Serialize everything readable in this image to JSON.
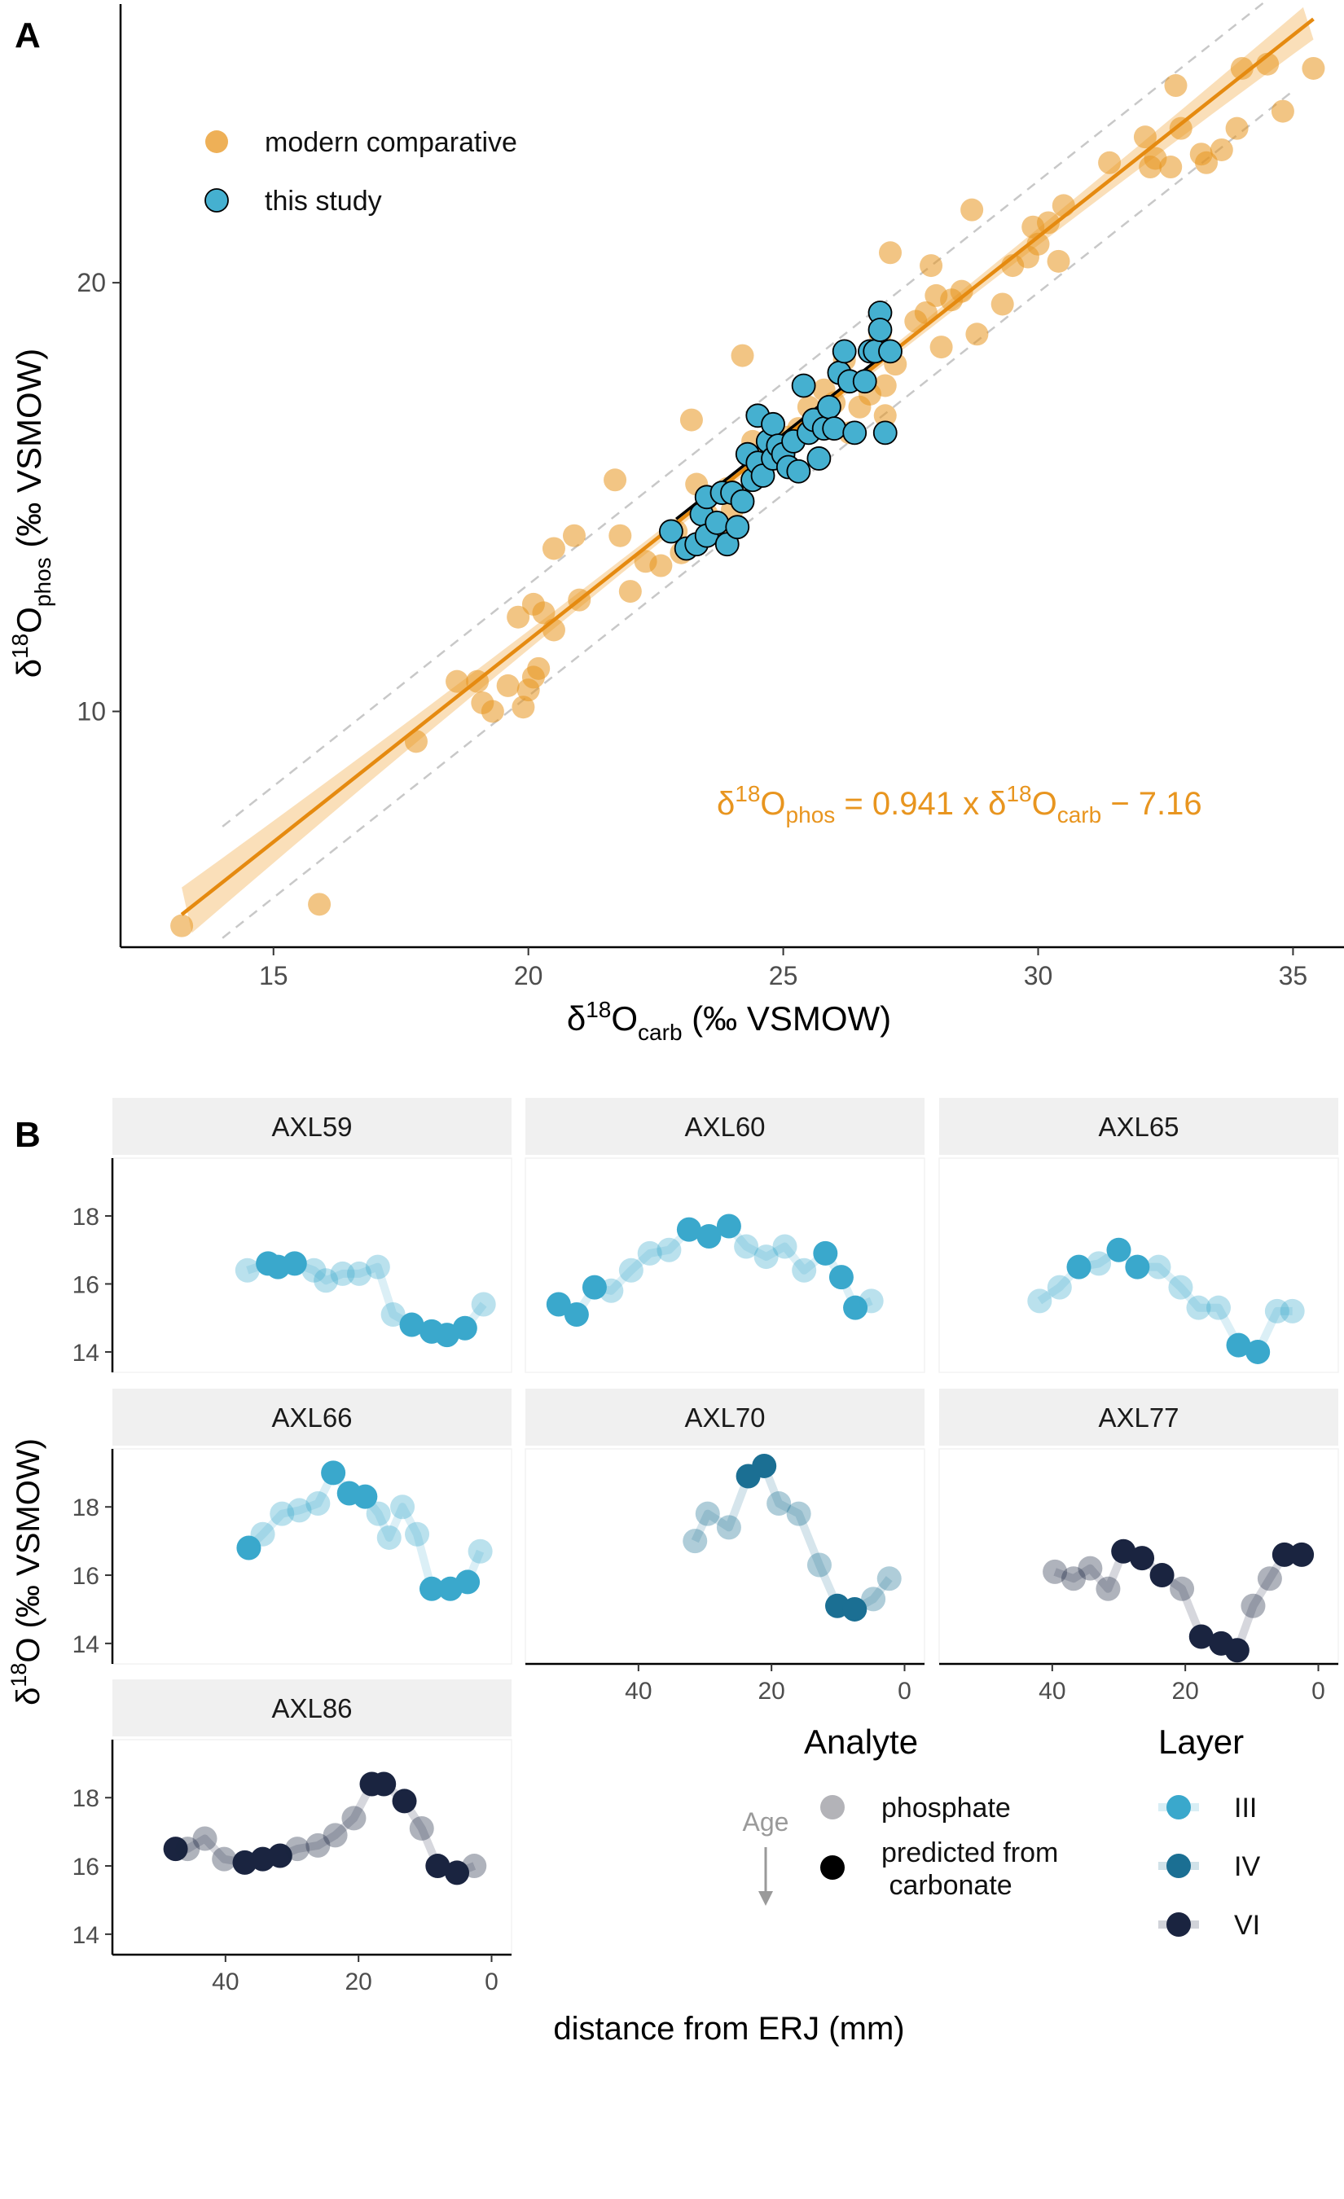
{
  "panel_a": {
    "label": "A",
    "xlabel": "δ18Ocarb (‰ VSMOW)",
    "ylabel": "δ18Ophos (‰ VSMOW)",
    "legend": [
      "modern comparative",
      "this study"
    ],
    "equation": "δ18Ophos = 0.941 x δ18Ocarb − 7.16"
  },
  "panel_b": {
    "label": "B",
    "ylabel": "δ18O (‰ VSMOW)",
    "xlabel": "distance from ERJ (mm)",
    "age_label": "Age",
    "analyte_title": "Analyte",
    "analyte_items": [
      "phosphate",
      "predicted from carbonate"
    ],
    "layer_title": "Layer",
    "layer_items": [
      "III",
      "IV",
      "VI"
    ]
  },
  "colors": {
    "modern": "#E8951F",
    "this_study": "#45B0D0",
    "layer_III": "#3AA8CC",
    "layer_IV": "#1B6F93",
    "layer_VI": "#1A2440",
    "phosphate_grey": "#9A9AA0",
    "fit_line": "#E58A10",
    "band": "#F7C98A"
  },
  "chart_data": [
    {
      "type": "scatter",
      "panel": "A",
      "xlim": [
        12,
        36
      ],
      "ylim": [
        4.5,
        26.5
      ],
      "xticks": [
        15,
        20,
        25,
        30,
        35
      ],
      "yticks": [
        10,
        20
      ],
      "grid": false,
      "legend_position": "top-left",
      "fit": {
        "slope": 0.941,
        "intercept": -7.16,
        "x_range": [
          13.2,
          35.4
        ]
      },
      "prediction_interval_halfwidth": 1.3,
      "series": [
        {
          "name": "modern comparative",
          "points": [
            [
              13.2,
              5.0
            ],
            [
              15.9,
              5.5
            ],
            [
              17.8,
              9.3
            ],
            [
              18.6,
              10.7
            ],
            [
              19.0,
              10.7
            ],
            [
              19.1,
              10.2
            ],
            [
              19.3,
              10.0
            ],
            [
              19.6,
              10.6
            ],
            [
              19.8,
              12.2
            ],
            [
              19.9,
              10.1
            ],
            [
              20.0,
              10.5
            ],
            [
              20.1,
              12.5
            ],
            [
              20.1,
              10.8
            ],
            [
              20.2,
              11.0
            ],
            [
              20.3,
              12.3
            ],
            [
              20.5,
              11.9
            ],
            [
              20.5,
              13.8
            ],
            [
              20.9,
              14.1
            ],
            [
              21.0,
              12.6
            ],
            [
              21.7,
              15.4
            ],
            [
              21.8,
              14.1
            ],
            [
              22.0,
              12.8
            ],
            [
              22.3,
              13.5
            ],
            [
              22.6,
              13.4
            ],
            [
              22.9,
              14.2
            ],
            [
              23.0,
              13.7
            ],
            [
              23.3,
              15.3
            ],
            [
              23.5,
              14.6
            ],
            [
              23.9,
              15.2
            ],
            [
              23.9,
              14.0
            ],
            [
              24.0,
              14.7
            ],
            [
              24.4,
              16.3
            ],
            [
              24.5,
              15.5
            ],
            [
              23.2,
              16.8
            ],
            [
              24.2,
              18.3
            ],
            [
              24.8,
              16.5
            ],
            [
              25.0,
              15.9
            ],
            [
              25.1,
              16.4
            ],
            [
              25.3,
              16.6
            ],
            [
              25.5,
              17.1
            ],
            [
              25.6,
              16.8
            ],
            [
              25.8,
              17.5
            ],
            [
              26.0,
              17.2
            ],
            [
              26.2,
              18.2
            ],
            [
              26.3,
              16.5
            ],
            [
              26.5,
              17.1
            ],
            [
              26.7,
              17.4
            ],
            [
              26.8,
              18.4
            ],
            [
              26.9,
              18.8
            ],
            [
              27.0,
              17.6
            ],
            [
              27.0,
              16.9
            ],
            [
              27.1,
              20.7
            ],
            [
              27.2,
              18.1
            ],
            [
              27.6,
              19.1
            ],
            [
              27.8,
              19.3
            ],
            [
              27.9,
              20.4
            ],
            [
              28.0,
              19.7
            ],
            [
              28.1,
              18.5
            ],
            [
              28.3,
              19.6
            ],
            [
              28.5,
              19.8
            ],
            [
              28.7,
              21.7
            ],
            [
              28.8,
              18.8
            ],
            [
              29.3,
              19.5
            ],
            [
              29.5,
              20.4
            ],
            [
              29.8,
              20.6
            ],
            [
              29.9,
              21.3
            ],
            [
              30.0,
              20.9
            ],
            [
              30.2,
              21.4
            ],
            [
              30.4,
              20.5
            ],
            [
              30.5,
              21.8
            ],
            [
              31.4,
              22.8
            ],
            [
              32.1,
              23.4
            ],
            [
              32.2,
              22.7
            ],
            [
              32.3,
              22.9
            ],
            [
              32.6,
              22.7
            ],
            [
              32.8,
              23.6
            ],
            [
              33.2,
              23.0
            ],
            [
              33.3,
              22.8
            ],
            [
              33.6,
              23.1
            ],
            [
              33.9,
              23.6
            ],
            [
              34.5,
              25.1
            ],
            [
              34.8,
              24.0
            ],
            [
              35.4,
              25.0
            ],
            [
              32.7,
              24.6
            ],
            [
              34.0,
              25.0
            ]
          ]
        },
        {
          "name": "this study",
          "points": [
            [
              22.8,
              14.2
            ],
            [
              23.1,
              13.8
            ],
            [
              23.3,
              13.9
            ],
            [
              23.4,
              14.6
            ],
            [
              23.5,
              14.1
            ],
            [
              23.5,
              15.0
            ],
            [
              23.7,
              14.4
            ],
            [
              23.8,
              15.1
            ],
            [
              23.9,
              13.9
            ],
            [
              24.0,
              15.1
            ],
            [
              24.1,
              14.3
            ],
            [
              24.2,
              14.9
            ],
            [
              24.3,
              16.0
            ],
            [
              24.4,
              15.4
            ],
            [
              24.5,
              15.8
            ],
            [
              24.5,
              16.9
            ],
            [
              24.6,
              15.5
            ],
            [
              24.7,
              16.3
            ],
            [
              24.8,
              15.9
            ],
            [
              24.8,
              16.7
            ],
            [
              24.9,
              16.2
            ],
            [
              25.0,
              16.0
            ],
            [
              25.1,
              15.7
            ],
            [
              25.2,
              16.3
            ],
            [
              25.3,
              15.6
            ],
            [
              25.4,
              17.6
            ],
            [
              25.5,
              16.5
            ],
            [
              25.6,
              16.8
            ],
            [
              25.7,
              15.9
            ],
            [
              25.8,
              16.6
            ],
            [
              25.9,
              17.1
            ],
            [
              26.0,
              16.6
            ],
            [
              26.1,
              17.9
            ],
            [
              26.2,
              18.4
            ],
            [
              26.3,
              17.7
            ],
            [
              26.4,
              16.5
            ],
            [
              26.6,
              17.7
            ],
            [
              26.7,
              18.4
            ],
            [
              26.8,
              18.4
            ],
            [
              26.9,
              19.3
            ],
            [
              26.9,
              18.9
            ],
            [
              27.0,
              16.5
            ],
            [
              27.1,
              18.4
            ]
          ]
        }
      ]
    },
    {
      "type": "line",
      "panel": "AXL59",
      "x": [
        36.7,
        33.6,
        32.1,
        29.6,
        26.7,
        24.9,
        22.4,
        19.9,
        17.1,
        14.8,
        12.0,
        9.0,
        6.7,
        4.0,
        1.2
      ],
      "y": [
        16.4,
        16.6,
        16.5,
        16.6,
        16.4,
        16.1,
        16.3,
        16.3,
        16.5,
        15.1,
        14.8,
        14.6,
        14.5,
        14.7,
        15.4
      ],
      "analyte": [
        "phosphate",
        "predicted",
        "predicted",
        "predicted",
        "phosphate",
        "phosphate",
        "phosphate",
        "phosphate",
        "phosphate",
        "phosphate",
        "predicted",
        "predicted",
        "predicted",
        "predicted",
        "phosphate"
      ],
      "layer": "III"
    },
    {
      "type": "line",
      "panel": "AXL60",
      "x": [
        52.0,
        49.3,
        46.6,
        44.1,
        41.1,
        38.3,
        35.4,
        32.4,
        29.4,
        26.4,
        23.8,
        20.8,
        18.0,
        15.1,
        11.9,
        9.5,
        7.4,
        5.0
      ],
      "y": [
        15.4,
        15.1,
        15.9,
        15.8,
        16.4,
        16.9,
        17.0,
        17.6,
        17.4,
        17.7,
        17.1,
        16.8,
        17.1,
        16.4,
        16.9,
        16.2,
        15.3,
        15.5
      ],
      "analyte": [
        "predicted",
        "predicted",
        "predicted",
        "phosphate",
        "phosphate",
        "phosphate",
        "phosphate",
        "predicted",
        "predicted",
        "predicted",
        "phosphate",
        "phosphate",
        "phosphate",
        "phosphate",
        "predicted",
        "predicted",
        "predicted",
        "phosphate"
      ],
      "layer": "III"
    },
    {
      "type": "line",
      "panel": "AXL65",
      "x": [
        41.9,
        38.9,
        36.0,
        33.0,
        30.0,
        27.2,
        24.0,
        20.7,
        18.0,
        15.0,
        12.0,
        9.1,
        6.2,
        3.9
      ],
      "y": [
        15.5,
        15.9,
        16.5,
        16.6,
        17.0,
        16.5,
        16.5,
        15.9,
        15.3,
        15.3,
        14.2,
        14.0,
        15.2,
        15.2
      ],
      "analyte": [
        "phosphate",
        "phosphate",
        "predicted",
        "phosphate",
        "predicted",
        "predicted",
        "phosphate",
        "phosphate",
        "phosphate",
        "phosphate",
        "predicted",
        "predicted",
        "phosphate",
        "phosphate"
      ],
      "layer": "III"
    },
    {
      "type": "line",
      "panel": "AXL66",
      "x": [
        36.5,
        34.4,
        31.5,
        28.9,
        26.1,
        23.8,
        21.4,
        19.0,
        17.0,
        15.4,
        13.4,
        11.2,
        9.0,
        6.2,
        3.6,
        1.7
      ],
      "y": [
        16.8,
        17.2,
        17.8,
        17.9,
        18.1,
        19.0,
        18.4,
        18.3,
        17.8,
        17.1,
        18.0,
        17.2,
        15.6,
        15.6,
        15.8,
        16.7
      ],
      "analyte": [
        "predicted",
        "phosphate",
        "phosphate",
        "phosphate",
        "phosphate",
        "predicted",
        "predicted",
        "predicted",
        "phosphate",
        "phosphate",
        "phosphate",
        "phosphate",
        "predicted",
        "predicted",
        "predicted",
        "phosphate"
      ],
      "layer": "III"
    },
    {
      "type": "line",
      "panel": "AXL70",
      "x": [
        31.5,
        29.6,
        26.4,
        23.5,
        21.1,
        18.9,
        15.9,
        12.8,
        10.1,
        7.5,
        4.7,
        2.3
      ],
      "y": [
        17.0,
        17.8,
        17.4,
        18.9,
        19.2,
        18.1,
        17.8,
        16.3,
        15.1,
        15.0,
        15.3,
        15.9
      ],
      "analyte": [
        "phosphate",
        "phosphate",
        "phosphate",
        "predicted",
        "predicted",
        "phosphate",
        "phosphate",
        "phosphate",
        "predicted",
        "predicted",
        "phosphate",
        "phosphate"
      ],
      "layer": "IV"
    },
    {
      "type": "line",
      "panel": "AXL77",
      "x": [
        39.6,
        36.8,
        34.3,
        31.6,
        29.3,
        26.5,
        23.5,
        20.5,
        17.6,
        14.6,
        12.2,
        9.8,
        7.3,
        5.1,
        2.5
      ],
      "y": [
        16.1,
        15.9,
        16.2,
        15.6,
        16.7,
        16.5,
        16.0,
        15.6,
        14.2,
        14.0,
        13.8,
        15.1,
        15.9,
        16.6,
        16.6
      ],
      "analyte": [
        "phosphate",
        "phosphate",
        "phosphate",
        "phosphate",
        "predicted",
        "predicted",
        "predicted",
        "phosphate",
        "predicted",
        "predicted",
        "predicted",
        "phosphate",
        "phosphate",
        "predicted",
        "predicted"
      ],
      "layer": "VI"
    },
    {
      "type": "line",
      "panel": "AXL86",
      "x": [
        47.5,
        45.7,
        43.1,
        40.2,
        37.1,
        34.4,
        31.8,
        29.2,
        26.1,
        23.5,
        20.7,
        18.0,
        16.2,
        13.1,
        10.5,
        8.1,
        5.2,
        2.6
      ],
      "y": [
        16.5,
        16.5,
        16.8,
        16.2,
        16.1,
        16.2,
        16.3,
        16.5,
        16.6,
        16.9,
        17.4,
        18.4,
        18.4,
        17.9,
        17.1,
        16.0,
        15.8,
        16.0
      ],
      "analyte": [
        "predicted",
        "phosphate",
        "phosphate",
        "phosphate",
        "predicted",
        "predicted",
        "predicted",
        "phosphate",
        "phosphate",
        "phosphate",
        "phosphate",
        "predicted",
        "predicted",
        "predicted",
        "phosphate",
        "predicted",
        "predicted",
        "phosphate"
      ],
      "layer": "VI"
    }
  ],
  "facet_axes": {
    "xlim": [
      57,
      -3
    ],
    "ylim": [
      13.4,
      19.7
    ],
    "yticks": [
      14,
      16,
      18
    ],
    "xticks": [
      40,
      20,
      0
    ]
  }
}
